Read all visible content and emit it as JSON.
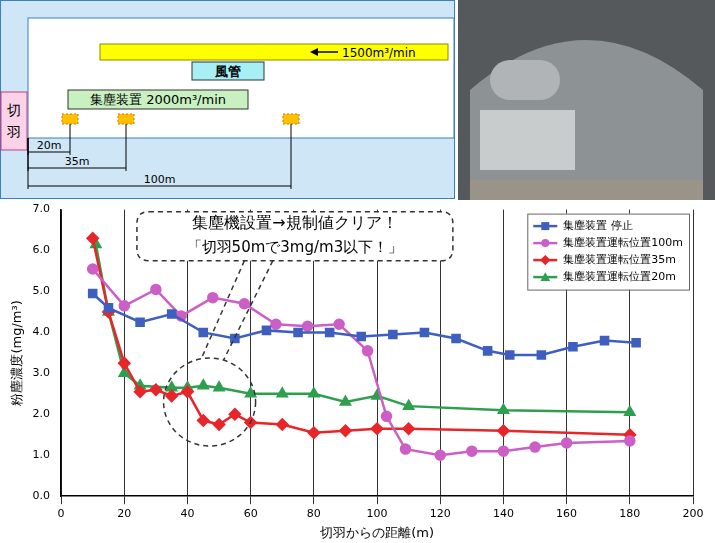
{
  "diagram": {
    "face": "切羽",
    "duct": {
      "label": "風管",
      "flow": "1500m³/min"
    },
    "collector": {
      "label": "集塵装置 2000m³/min"
    },
    "distances": [
      "20m",
      "35m",
      "100m"
    ]
  },
  "chart_data": {
    "type": "line",
    "x_label": "切羽からの距離(m)",
    "y_label": "粉塵濃度(mg/m³)",
    "annotations": [
      "集塵機設置→規制値クリア！",
      "「切羽50mで3mg/m3以下！」"
    ],
    "xlim": [
      0,
      200
    ],
    "xticks": [
      0,
      20,
      40,
      60,
      80,
      100,
      120,
      140,
      160,
      180,
      200
    ],
    "ylim": [
      0,
      7
    ],
    "yticks": [
      {
        "value": 0,
        "label": "0.0"
      },
      {
        "value": 1,
        "label": "1.0"
      },
      {
        "value": 2,
        "label": "2.0"
      },
      {
        "value": 3,
        "label": "3.0"
      },
      {
        "value": 4,
        "label": "4.0"
      },
      {
        "value": 5,
        "label": "5.0"
      },
      {
        "value": 6,
        "label": "6.0"
      },
      {
        "value": 7,
        "label": "7.0"
      }
    ],
    "grid": true,
    "legend": "upper right",
    "series": [
      {
        "name": "集塵装置 停止",
        "color": "#3f5fbf",
        "marker": "square",
        "x": [
          10,
          15,
          25,
          35,
          45,
          55,
          65,
          75,
          85,
          95,
          105,
          115,
          125,
          135,
          142,
          152,
          162,
          172,
          182
        ],
        "values": [
          4.95,
          4.6,
          4.25,
          4.45,
          4.0,
          3.85,
          4.05,
          4.0,
          4.0,
          3.9,
          3.95,
          4.0,
          3.85,
          3.55,
          3.45,
          3.45,
          3.65,
          3.8,
          3.75
        ]
      },
      {
        "name": "集塵装置運転位置100m",
        "color": "#cc5fc6",
        "marker": "circle",
        "x": [
          10,
          20,
          30,
          38,
          48,
          58,
          68,
          78,
          88,
          97,
          103,
          109,
          120,
          130,
          140,
          150,
          160,
          180
        ],
        "values": [
          5.55,
          4.65,
          5.05,
          4.4,
          4.85,
          4.7,
          4.2,
          4.15,
          4.2,
          3.55,
          1.95,
          1.15,
          1.0,
          1.1,
          1.1,
          1.2,
          1.3,
          1.35
        ]
      },
      {
        "name": "集塵装置運転位置35m",
        "color": "#e8262a",
        "marker": "diamond",
        "x": [
          10,
          15,
          20,
          25,
          30,
          35,
          40,
          45,
          50,
          55,
          60,
          70,
          80,
          90,
          100,
          110,
          140,
          180
        ],
        "values": [
          6.3,
          4.5,
          3.25,
          2.55,
          2.6,
          2.45,
          2.55,
          1.85,
          1.75,
          2.0,
          1.8,
          1.75,
          1.55,
          1.6,
          1.65,
          1.65,
          1.6,
          1.5
        ]
      },
      {
        "name": "集塵装置運転位置20m",
        "color": "#2e9e4f",
        "marker": "triangle",
        "x": [
          11,
          15,
          20,
          25,
          35,
          40,
          45,
          50,
          60,
          70,
          80,
          90,
          100,
          110,
          140,
          180
        ],
        "values": [
          6.15,
          4.5,
          3.0,
          2.7,
          2.65,
          2.65,
          2.7,
          2.65,
          2.5,
          2.5,
          2.5,
          2.3,
          2.45,
          2.2,
          2.1,
          2.05
        ]
      }
    ]
  }
}
